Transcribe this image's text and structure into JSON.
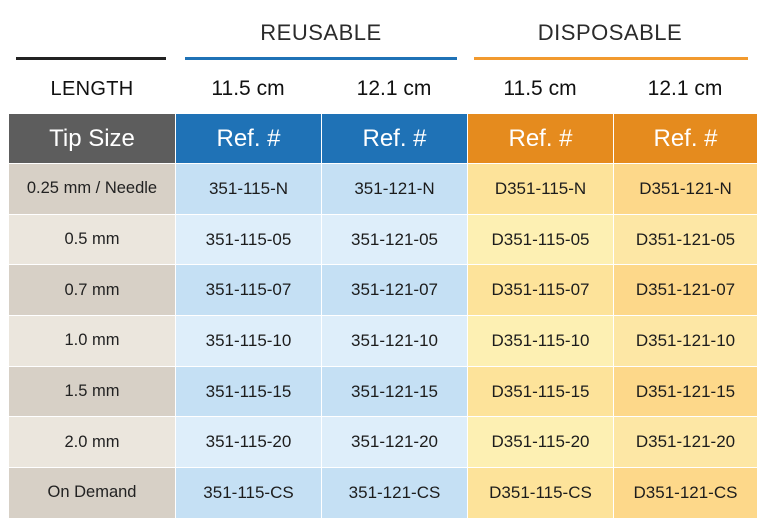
{
  "groups": [
    {
      "label": "REUSABLE"
    },
    {
      "label": "DISPOSABLE"
    }
  ],
  "lengths": [
    "LENGTH",
    "11.5 cm",
    "12.1 cm",
    "11.5 cm",
    "12.1 cm"
  ],
  "headers": [
    "Tip Size",
    "Ref. #",
    "Ref. #",
    "Ref. #",
    "Ref. #"
  ],
  "rows": [
    {
      "tip": "0.25 mm / Needle",
      "refs": [
        "351-115-N",
        "351-121-N",
        "D351-115-N",
        "D351-121-N"
      ]
    },
    {
      "tip": "0.5 mm",
      "refs": [
        "351-115-05",
        "351-121-05",
        "D351-115-05",
        "D351-121-05"
      ]
    },
    {
      "tip": "0.7 mm",
      "refs": [
        "351-115-07",
        "351-121-07",
        "D351-115-07",
        "D351-121-07"
      ]
    },
    {
      "tip": "1.0 mm",
      "refs": [
        "351-115-10",
        "351-121-10",
        "D351-115-10",
        "D351-121-10"
      ]
    },
    {
      "tip": "1.5 mm",
      "refs": [
        "351-115-15",
        "351-121-15",
        "D351-115-15",
        "D351-121-15"
      ]
    },
    {
      "tip": "2.0 mm",
      "refs": [
        "351-115-20",
        "351-121-20",
        "D351-115-20",
        "D351-121-20"
      ]
    },
    {
      "tip": "On Demand",
      "refs": [
        "351-115-CS",
        "351-121-CS",
        "D351-115-CS",
        "D351-121-CS"
      ]
    }
  ],
  "colors": {
    "tip_header": "#5d5d5d",
    "reusable_header": "#1f72b6",
    "reusable_line": "#1f72b6",
    "disposable_header": "#e58b1e",
    "disposable_line": "#f29a2e",
    "length_line": "#222222",
    "tip_row_a": "#d7d0c6",
    "tip_row_b": "#ebe6dd",
    "reusable_row_a": "#c5e0f4",
    "reusable_row_b": "#deeefa",
    "disp115_row_a": "#fde39a",
    "disp115_row_b": "#fdf0b3",
    "disp121_row_a": "#fdd88a",
    "disp121_row_b": "#fde7a5"
  }
}
